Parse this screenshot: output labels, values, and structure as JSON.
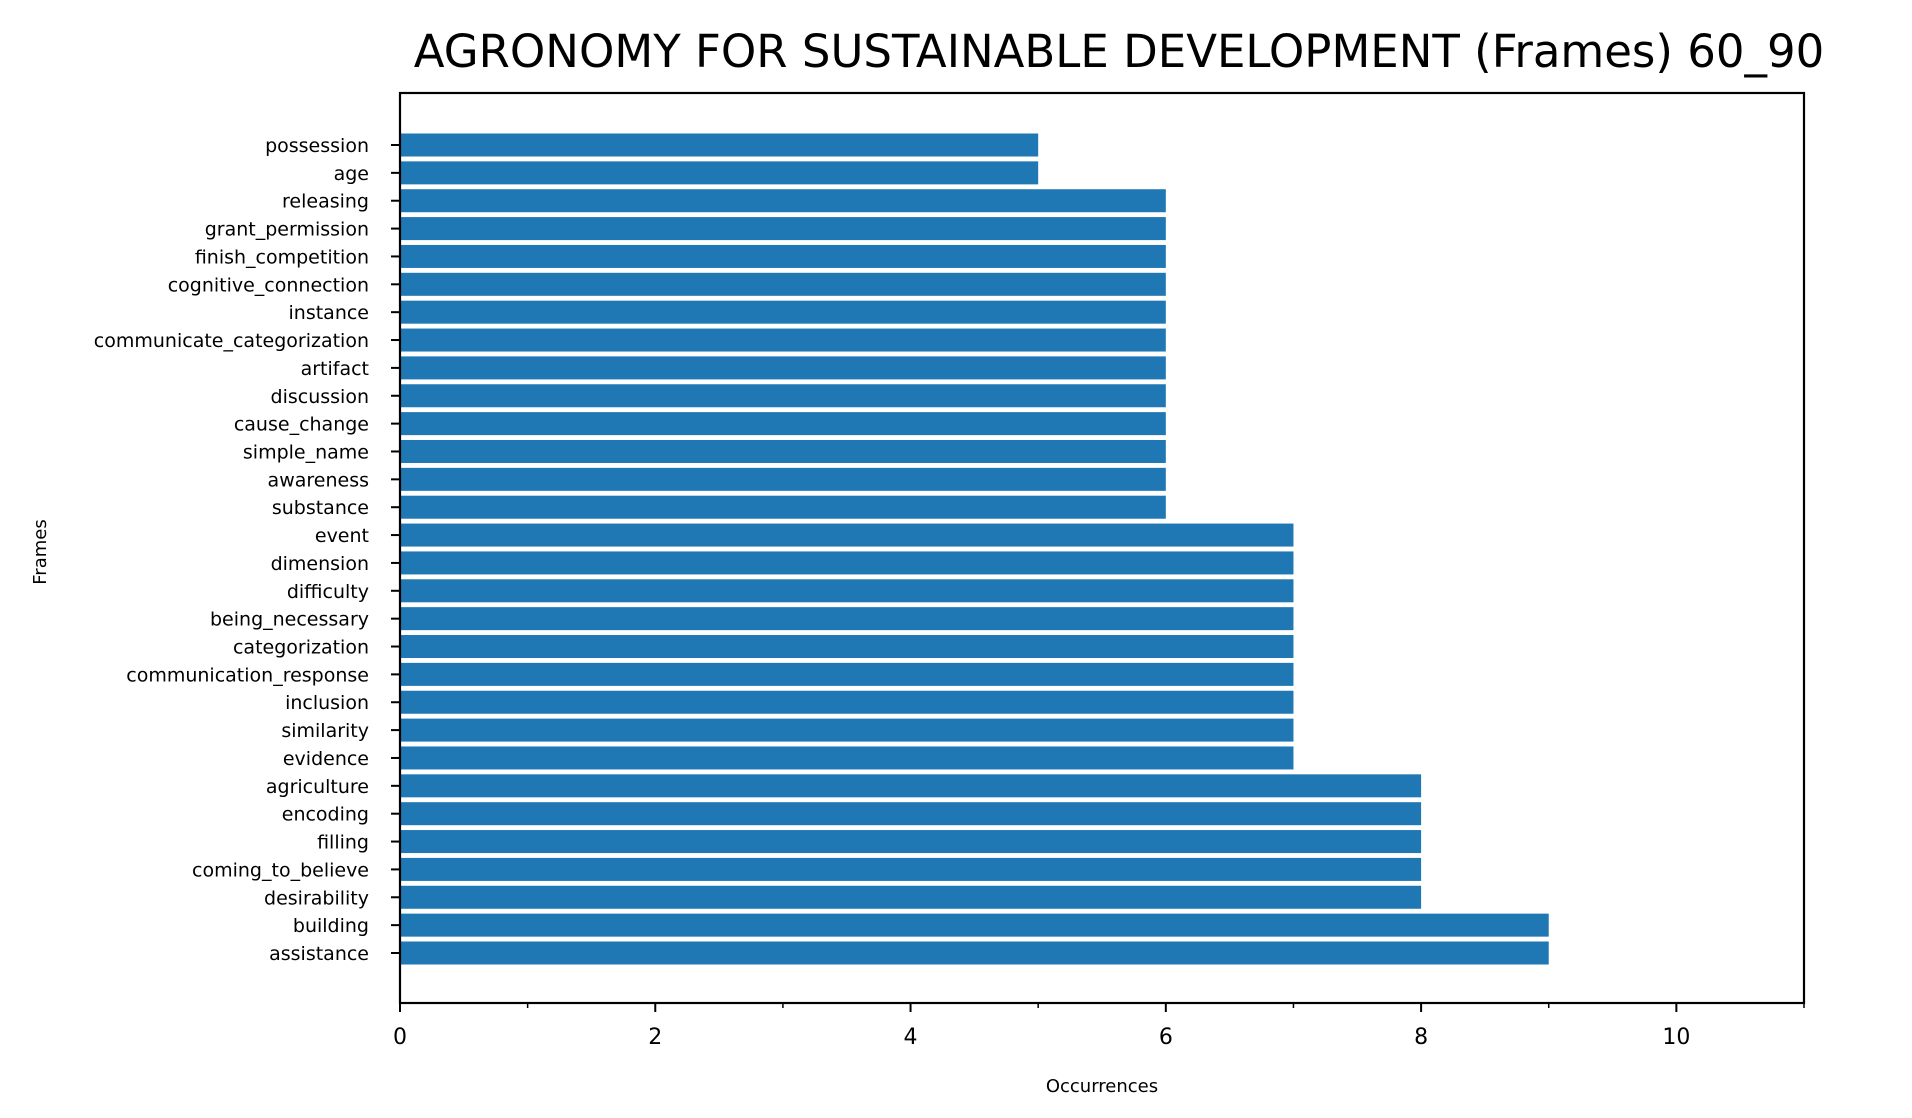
{
  "chart_data": {
    "type": "bar",
    "orientation": "horizontal",
    "title": "AGRONOMY FOR SUSTAINABLE DEVELOPMENT (Frames) 60_90",
    "xlabel": "Occurrences",
    "ylabel": "Frames",
    "xlim": [
      0,
      11
    ],
    "xticks": [
      0,
      2,
      4,
      6,
      8,
      10
    ],
    "minor_xticks": [
      1,
      3,
      5,
      7,
      9,
      11
    ],
    "grid": false,
    "legend": "none",
    "bar_color": "#1f77b4",
    "categories": [
      "possession",
      "age",
      "releasing",
      "grant_permission",
      "finish_competition",
      "cognitive_connection",
      "instance",
      "communicate_categorization",
      "artifact",
      "discussion",
      "cause_change",
      "simple_name",
      "awareness",
      "substance",
      "event",
      "dimension",
      "difficulty",
      "being_necessary",
      "categorization",
      "communication_response",
      "inclusion",
      "similarity",
      "evidence",
      "agriculture",
      "encoding",
      "filling",
      "coming_to_believe",
      "desirability",
      "building",
      "assistance"
    ],
    "values": [
      5,
      5,
      6,
      6,
      6,
      6,
      6,
      6,
      6,
      6,
      6,
      6,
      6,
      6,
      7,
      7,
      7,
      7,
      7,
      7,
      7,
      7,
      7,
      8,
      8,
      8,
      8,
      8,
      9,
      9
    ]
  }
}
